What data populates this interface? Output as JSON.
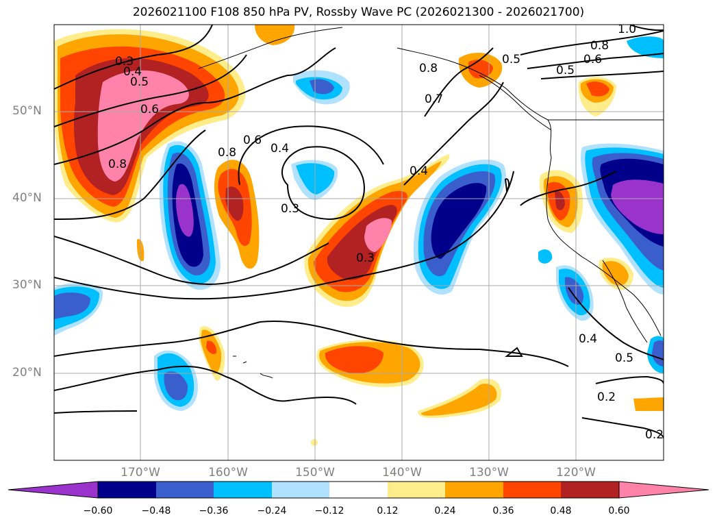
{
  "title": "2026021100 F108 850 hPa PV, Rossby Wave PC (2026021300 - 2026021700)",
  "map": {
    "projection": "PlateCarree",
    "extent_lon": [
      -180,
      -110
    ],
    "extent_lat": [
      10,
      60
    ],
    "gridlines": true,
    "lat_labels": [
      "50°N",
      "40°N",
      "30°N",
      "20°N"
    ],
    "lon_labels": [
      "170°W",
      "160°W",
      "150°W",
      "140°W",
      "130°W",
      "120°W"
    ],
    "contour_labels": [
      "0.3",
      "0.4",
      "0.5",
      "0.6",
      "0.8",
      "0.8",
      "0.6",
      "0.4",
      "0.3",
      "0.3",
      "0.4",
      "0.7",
      "0.8",
      "0.5",
      "0.8",
      "0.6",
      "1.0",
      "0.5",
      "0.4",
      "0.5",
      "0.2",
      "0.2"
    ]
  },
  "colorbar": {
    "ticks": [
      "−0.60",
      "−0.48",
      "−0.36",
      "−0.24",
      "−0.12",
      "0.12",
      "0.24",
      "0.36",
      "0.48",
      "0.60"
    ],
    "colors": [
      "#9933cc",
      "#00008b",
      "#3a5fcd",
      "#00bfff",
      "#b0e2ff",
      "#ffffff",
      "#ffec8b",
      "#ffa500",
      "#ff4500",
      "#b22222",
      "#ff82ab"
    ]
  }
}
